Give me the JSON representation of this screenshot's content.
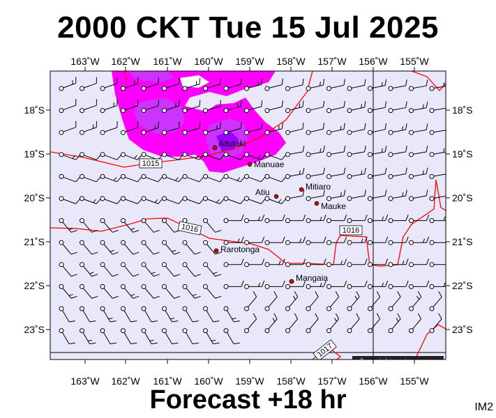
{
  "header": {
    "title": "2000 CKT Tue 15 Jul 2025"
  },
  "footer": {
    "forecast": "Forecast +18 hr",
    "image_id": "IM2"
  },
  "map": {
    "colors": {
      "background": "#e8e8fa",
      "precip_light": "#ff00ff",
      "precip_medium": "#cc33ff",
      "precip_heavy": "#9900ff",
      "isobar": "#ff0000",
      "coast": "#000000"
    },
    "top_longitude_labels": [
      "163˚W",
      "162˚W",
      "161˚W",
      "160˚W",
      "159˚W",
      "158˚W",
      "157˚W",
      "156˚W",
      "155˚W"
    ],
    "bottom_longitude_labels": [
      "163˚W",
      "162˚W",
      "161˚W",
      "160˚W",
      "159˚W",
      "158˚W",
      "157˚W",
      "156˚W",
      "155˚W"
    ],
    "left_latitude_labels": [
      "18˚S",
      "19˚S",
      "20˚S",
      "21˚S",
      "22˚S",
      "23˚S"
    ],
    "right_latitude_labels": [
      "18˚S",
      "19˚S",
      "20˚S",
      "21˚S",
      "22˚S",
      "23˚S"
    ],
    "isobar_labels": [
      "1015",
      "1016",
      "1016",
      "1017"
    ],
    "places": [
      {
        "name": "Aitutaki"
      },
      {
        "name": "Manuae"
      },
      {
        "name": "Atiu"
      },
      {
        "name": "Mitiaro"
      },
      {
        "name": "Mauke"
      },
      {
        "name": "Rarotonga"
      },
      {
        "name": "Mangaia"
      }
    ],
    "copyright": "Copyright metvuw.com"
  }
}
